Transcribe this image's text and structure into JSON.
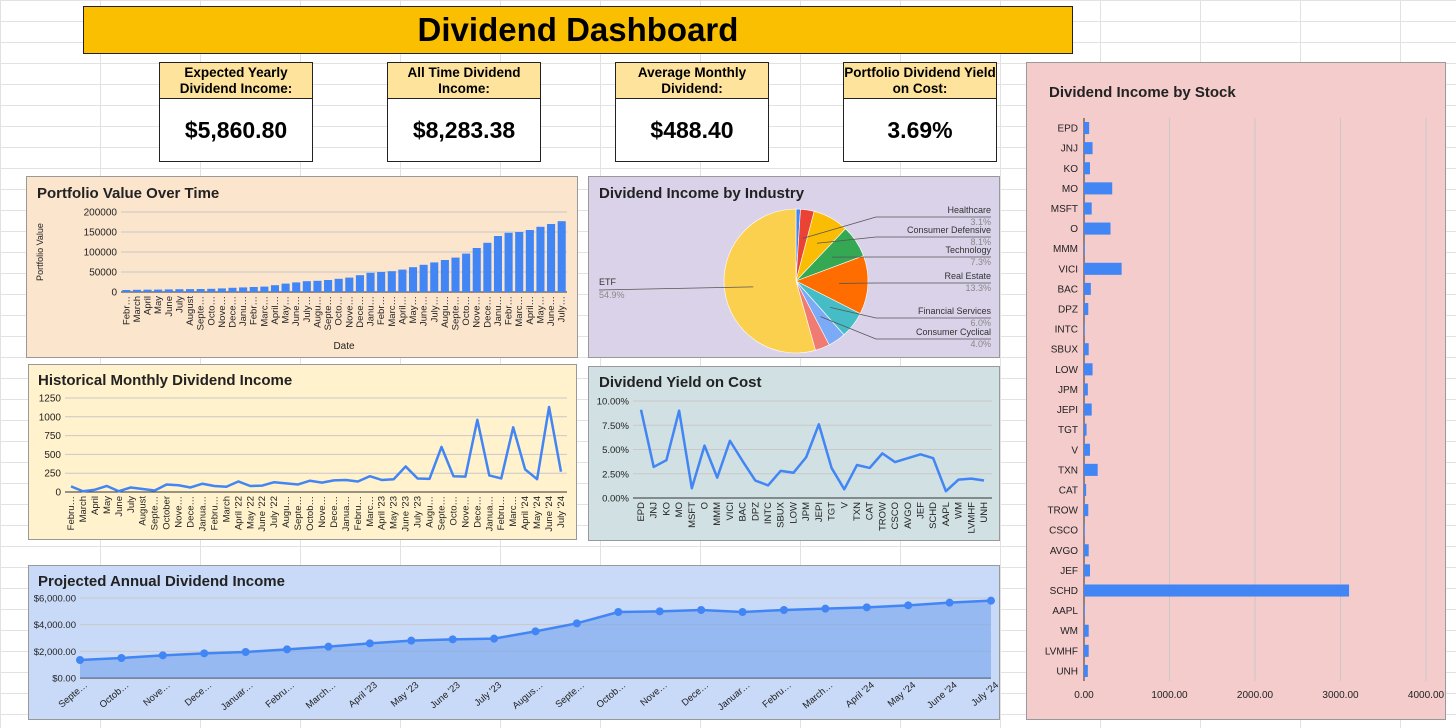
{
  "dashboard": {
    "title": "Dividend Dashboard"
  },
  "kpis": [
    {
      "label": "Expected Yearly Dividend Income:",
      "value": "$5,860.80"
    },
    {
      "label": "All Time Dividend Income:",
      "value": "$8,283.38"
    },
    {
      "label": "Average Monthly Dividend:",
      "value": "$488.40"
    },
    {
      "label": "Portfolio Dividend Yield on Cost:",
      "value": "3.69%"
    }
  ],
  "colors": {
    "bar": "#4285f4",
    "title_bar": "#f9bf00",
    "kpi_label": "#fde39b"
  },
  "chart_data": [
    {
      "id": "portfolio",
      "type": "bar",
      "title": "Portfolio Value Over Time",
      "xlabel": "Date",
      "ylabel": "Portfolio Value",
      "ylim": [
        0,
        200000
      ],
      "yticks": [
        "0",
        "50000",
        "100000",
        "150000",
        "200000"
      ],
      "categories": [
        "Febr…",
        "March",
        "April",
        "May",
        "June",
        "July",
        "August",
        "Septe…",
        "Octo…",
        "Nove…",
        "Dece…",
        "Janu…",
        "Febr…",
        "Marc…",
        "April…",
        "May…",
        "June…",
        "July…",
        "Augu…",
        "Septe…",
        "Octo…",
        "Nove…",
        "Dece…",
        "Janu…",
        "Febr…",
        "Marc…",
        "April…",
        "May…",
        "June…",
        "July…",
        "Augu…",
        "Septe…",
        "Octo…",
        "Nove…",
        "Dece…",
        "Janu…",
        "Febr…",
        "Marc…",
        "April…",
        "May…",
        "June…",
        "July…"
      ],
      "tick_labels": [
        "Febr…",
        "March",
        "April",
        "May",
        "June",
        "July",
        "August",
        "Septe…",
        "Octo…",
        "Nove…",
        "Dece…",
        "Janu…",
        "Febr…",
        "Marc…",
        "April…",
        "May…",
        "June…",
        "July…",
        "Augu…",
        "Septe…",
        "Octo…",
        "Nove…",
        "Dece…",
        "Janu…",
        "Febr…",
        "Marc…",
        "April…",
        "May…",
        "June…",
        "July…",
        "Augu…",
        "Septe…",
        "Octo…",
        "Nove…",
        "Dece…",
        "Janu…",
        "Febr…",
        "Marc…",
        "April…",
        "May…",
        "June…",
        "July…"
      ],
      "values": [
        5000,
        5500,
        5800,
        6000,
        6500,
        7000,
        7200,
        7500,
        8000,
        9000,
        10500,
        11500,
        12500,
        13500,
        17000,
        21000,
        24000,
        27000,
        28000,
        30000,
        33000,
        36000,
        42000,
        48000,
        50000,
        52000,
        56000,
        62000,
        68000,
        74000,
        80000,
        86000,
        96000,
        110000,
        123000,
        140000,
        148000,
        150000,
        155000,
        163000,
        170000,
        177000
      ]
    },
    {
      "id": "industry",
      "type": "pie",
      "title": "Dividend Income by Industry",
      "slices": [
        {
          "name": "Healthcare",
          "pct": "3.1%",
          "value": 3.1,
          "color": "#ea4335"
        },
        {
          "name": "Consumer Defensive",
          "pct": "8.1%",
          "value": 8.1,
          "color": "#fbbc04"
        },
        {
          "name": "Technology",
          "pct": "7.3%",
          "value": 7.3,
          "color": "#34a853"
        },
        {
          "name": "Real Estate",
          "pct": "13.3%",
          "value": 13.3,
          "color": "#ff6d01"
        },
        {
          "name": "Financial Services",
          "pct": "6.0%",
          "value": 6.0,
          "color": "#46bdc6"
        },
        {
          "name": "Consumer Cyclical",
          "pct": "4.0%",
          "value": 4.0,
          "color": "#7baaf7"
        },
        {
          "name": "",
          "pct": "",
          "value": 3.3,
          "color": "#f07b72"
        },
        {
          "name": "ETF",
          "pct": "54.9%",
          "value": 54.9,
          "color": "#fcd04f"
        }
      ],
      "leading_slice": {
        "value": 1.0,
        "color": "#4285f4"
      }
    },
    {
      "id": "stock",
      "type": "bar",
      "orientation": "horizontal",
      "title": "Dividend Income by Stock",
      "categories": [
        "EPD",
        "JNJ",
        "KO",
        "MO",
        "MSFT",
        "O",
        "MMM",
        "VICI",
        "BAC",
        "DPZ",
        "INTC",
        "SBUX",
        "LOW",
        "JPM",
        "JEPI",
        "TGT",
        "V",
        "TXN",
        "CAT",
        "TROW",
        "CSCO",
        "AVGO",
        "JEF",
        "SCHD",
        "AAPL",
        "WM",
        "LVMHF",
        "UNH"
      ],
      "values": [
        60,
        100,
        70,
        330,
        90,
        310,
        10,
        440,
        80,
        50,
        5,
        55,
        100,
        45,
        90,
        30,
        70,
        160,
        25,
        50,
        5,
        55,
        70,
        3100,
        10,
        55,
        55,
        45
      ],
      "xlim": [
        0,
        4000
      ],
      "xticks": [
        "0.00",
        "1000.00",
        "2000.00",
        "3000.00",
        "4000.00"
      ]
    },
    {
      "id": "monthly",
      "type": "line",
      "title": "Historical Monthly Dividend Income",
      "ylim": [
        0,
        1250
      ],
      "yticks": [
        "0",
        "250",
        "500",
        "750",
        "1000",
        "1250"
      ],
      "x": [
        "Febru…",
        "March",
        "April",
        "May",
        "June",
        "July",
        "August",
        "Septe…",
        "October",
        "Nove…",
        "Dece…",
        "Janua…",
        "Febru…",
        "March",
        "April '22",
        "May '22",
        "June '22",
        "July '22",
        "Augu…",
        "Septe…",
        "Octob…",
        "Nove…",
        "Dece…",
        "Janua…",
        "Febru…",
        "Marc…",
        "April '23",
        "May '23",
        "June '23",
        "July '23",
        "Augu…",
        "Septe…",
        "Octo…",
        "Nove…",
        "Dece…",
        "Janua…",
        "Febru…",
        "Marc…",
        "April '24",
        "May '24",
        "June '24",
        "July '24"
      ],
      "tick_labels": [
        "Febru…",
        "March",
        "April",
        "May",
        "June",
        "July",
        "August",
        "Septe…",
        "October",
        "Nove…",
        "Dece…",
        "Janua…",
        "Febru…",
        "March",
        "April '22",
        "May '22",
        "June '22",
        "July '22",
        "Augu…",
        "Septe…",
        "Octob…",
        "Nove…",
        "Dece…",
        "Janua…",
        "Febru…",
        "Marc…",
        "April '23",
        "May '23",
        "June '23",
        "July '23",
        "Augu…",
        "Septe…",
        "Octo…",
        "Nove…",
        "Dece…",
        "Janua…",
        "Febru…",
        "Marc…",
        "April '24",
        "May '24",
        "June '24",
        "July '24"
      ],
      "values": [
        75,
        10,
        30,
        80,
        10,
        60,
        40,
        20,
        100,
        90,
        60,
        110,
        80,
        70,
        140,
        80,
        85,
        130,
        115,
        100,
        150,
        125,
        155,
        160,
        140,
        210,
        160,
        170,
        340,
        180,
        175,
        600,
        210,
        205,
        960,
        220,
        180,
        860,
        300,
        170,
        1130,
        270
      ]
    },
    {
      "id": "yield",
      "type": "line",
      "title": "Dividend Yield on Cost",
      "ylim": [
        0,
        10
      ],
      "yticks": [
        "0.00%",
        "2.50%",
        "5.00%",
        "7.50%",
        "10.00%"
      ],
      "x": [
        "EPD",
        "JNJ",
        "KO",
        "MO",
        "MSFT",
        "O",
        "MMM",
        "VICI",
        "BAC",
        "DPZ",
        "INTC",
        "SBUX",
        "LOW",
        "JPM",
        "JEPI",
        "TGT",
        "V",
        "TXN",
        "CAT",
        "TROW",
        "CSCO",
        "AVGO",
        "JEF",
        "SCHD",
        "AAPL",
        "WM",
        "LVMHF",
        "UNH"
      ],
      "values": [
        9.1,
        3.2,
        3.9,
        9.0,
        1.0,
        5.4,
        2.1,
        5.9,
        3.8,
        1.8,
        1.3,
        2.8,
        2.6,
        4.2,
        7.6,
        3.1,
        0.9,
        3.4,
        3.1,
        4.6,
        3.7,
        4.1,
        4.5,
        4.1,
        0.7,
        1.9,
        2.0,
        1.8
      ]
    },
    {
      "id": "projected",
      "type": "area",
      "title": "Projected Annual Dividend Income",
      "ylim": [
        0,
        6000
      ],
      "yticks": [
        "$0.00",
        "$2,000.00",
        "$4,000.00",
        "$6,000.00"
      ],
      "x": [
        "Septe…",
        "Octob…",
        "Nove…",
        "Dece…",
        "Januar…",
        "Febru…",
        "March…",
        "April '23",
        "May '23",
        "June '23",
        "July '23",
        "Augus…",
        "Septe…",
        "Octob…",
        "Nove…",
        "Dece…",
        "Januar…",
        "Febru…",
        "March…",
        "April '24",
        "May '24",
        "June '24",
        "July '24"
      ],
      "tick_labels": [
        "Septe…",
        "Octob…",
        "Nove…",
        "Dece…",
        "Januar…",
        "Febru…",
        "March…",
        "April '23",
        "May '23",
        "June '23",
        "July '23",
        "Augus…",
        "Septe…",
        "Octob…",
        "Nove…",
        "Dece…",
        "Januar…",
        "Febru…",
        "March…",
        "April '24",
        "May '24",
        "June '24",
        "July '24"
      ],
      "values": [
        1350,
        1500,
        1700,
        1850,
        1950,
        2150,
        2350,
        2600,
        2800,
        2900,
        2950,
        3500,
        4100,
        4950,
        5000,
        5100,
        4950,
        5100,
        5200,
        5300,
        5450,
        5650,
        5800
      ]
    }
  ]
}
